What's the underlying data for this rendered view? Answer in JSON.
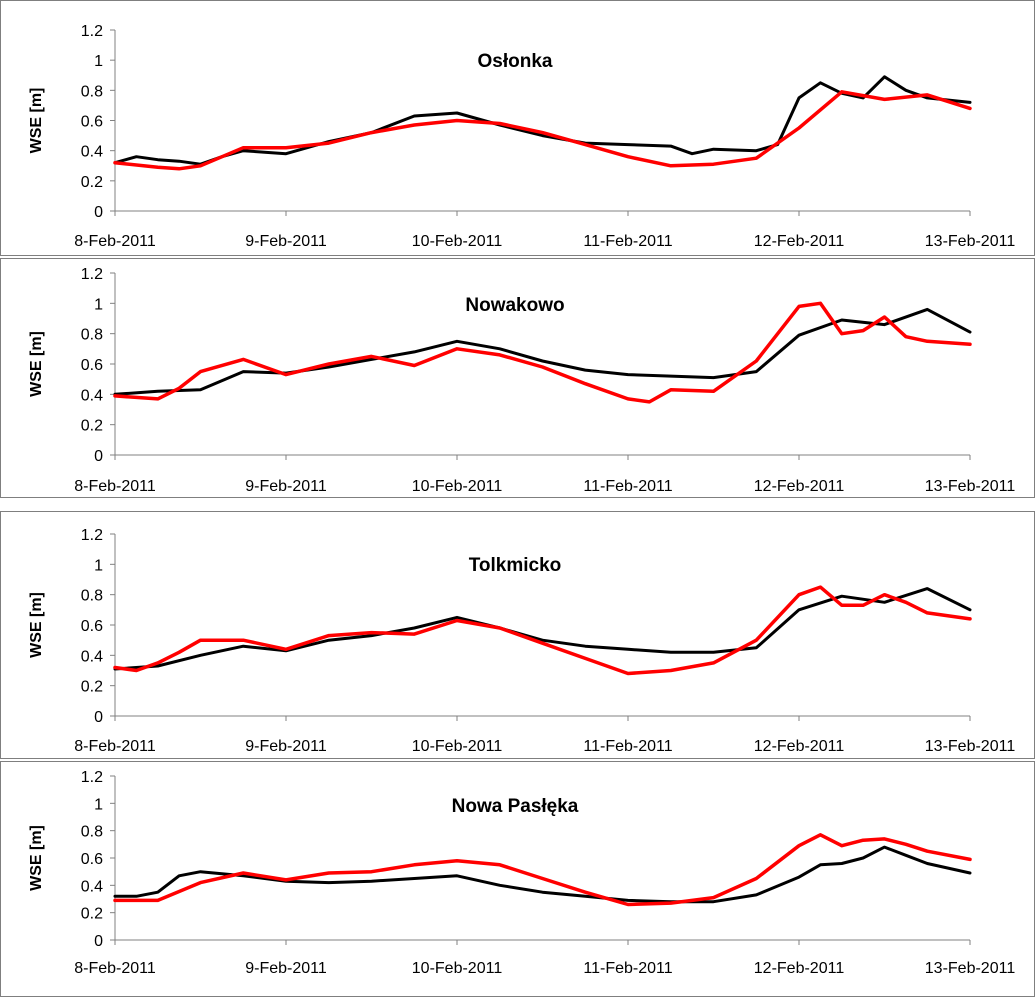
{
  "colors": {
    "observed": "#000000",
    "modelled": "#ff0000"
  },
  "chart_data": [
    {
      "type": "line",
      "title": "Osłonka",
      "ylabel": "WSE [m]",
      "xlabel": "",
      "ylim": [
        0,
        1.2
      ],
      "yticks": [
        "0",
        "0.2",
        "0.4",
        "0.6",
        "0.8",
        "1",
        "1.2"
      ],
      "xlim": [
        "8-Feb-2011",
        "13-Feb-2011"
      ],
      "xticks": [
        "8-Feb-2011",
        "9-Feb-2011",
        "10-Feb-2011",
        "11-Feb-2011",
        "12-Feb-2011",
        "13-Feb-2011"
      ],
      "grid": false,
      "series": [
        {
          "color": "#000000",
          "x": [
            "2011-02-08 00:00",
            "2011-02-08 03:00",
            "2011-02-08 06:00",
            "2011-02-08 09:00",
            "2011-02-08 12:00",
            "2011-02-08 15:00",
            "2011-02-08 18:00",
            "2011-02-09 00:00",
            "2011-02-09 06:00",
            "2011-02-09 12:00",
            "2011-02-09 18:00",
            "2011-02-10 00:00",
            "2011-02-10 06:00",
            "2011-02-10 12:00",
            "2011-02-10 18:00",
            "2011-02-11 00:00",
            "2011-02-11 06:00",
            "2011-02-11 09:00",
            "2011-02-11 12:00",
            "2011-02-11 18:00",
            "2011-02-11 21:00",
            "2011-02-12 00:00",
            "2011-02-12 03:00",
            "2011-02-12 06:00",
            "2011-02-12 09:00",
            "2011-02-12 12:00",
            "2011-02-12 15:00",
            "2011-02-12 18:00",
            "2011-02-13 00:00"
          ],
          "values": [
            0.32,
            0.36,
            0.34,
            0.33,
            0.31,
            0.36,
            0.4,
            0.38,
            0.46,
            0.52,
            0.63,
            0.65,
            0.57,
            0.5,
            0.45,
            0.44,
            0.43,
            0.38,
            0.41,
            0.4,
            0.44,
            0.75,
            0.85,
            0.78,
            0.75,
            0.89,
            0.8,
            0.75,
            0.72
          ]
        },
        {
          "color": "#ff0000",
          "x": [
            "2011-02-08 00:00",
            "2011-02-08 06:00",
            "2011-02-08 09:00",
            "2011-02-08 12:00",
            "2011-02-08 18:00",
            "2011-02-09 00:00",
            "2011-02-09 06:00",
            "2011-02-09 12:00",
            "2011-02-09 18:00",
            "2011-02-10 00:00",
            "2011-02-10 06:00",
            "2011-02-10 12:00",
            "2011-02-10 18:00",
            "2011-02-11 00:00",
            "2011-02-11 06:00",
            "2011-02-11 12:00",
            "2011-02-11 18:00",
            "2011-02-12 00:00",
            "2011-02-12 06:00",
            "2011-02-12 12:00",
            "2011-02-12 18:00",
            "2011-02-13 00:00"
          ],
          "values": [
            0.32,
            0.29,
            0.28,
            0.3,
            0.42,
            0.42,
            0.45,
            0.52,
            0.57,
            0.6,
            0.58,
            0.52,
            0.44,
            0.36,
            0.3,
            0.31,
            0.35,
            0.55,
            0.79,
            0.74,
            0.77,
            0.68
          ]
        }
      ]
    },
    {
      "type": "line",
      "title": "Nowakowo",
      "ylabel": "WSE [m]",
      "xlabel": "",
      "ylim": [
        0,
        1.2
      ],
      "yticks": [
        "0",
        "0.2",
        "0.4",
        "0.6",
        "0.8",
        "1",
        "1.2"
      ],
      "xlim": [
        "8-Feb-2011",
        "13-Feb-2011"
      ],
      "xticks": [
        "8-Feb-2011",
        "9-Feb-2011",
        "10-Feb-2011",
        "11-Feb-2011",
        "12-Feb-2011",
        "13-Feb-2011"
      ],
      "grid": false,
      "series": [
        {
          "color": "#000000",
          "x": [
            "2011-02-08 00:00",
            "2011-02-08 06:00",
            "2011-02-08 12:00",
            "2011-02-08 18:00",
            "2011-02-09 00:00",
            "2011-02-09 06:00",
            "2011-02-09 12:00",
            "2011-02-09 18:00",
            "2011-02-10 00:00",
            "2011-02-10 06:00",
            "2011-02-10 12:00",
            "2011-02-10 18:00",
            "2011-02-11 00:00",
            "2011-02-11 06:00",
            "2011-02-11 12:00",
            "2011-02-11 18:00",
            "2011-02-12 00:00",
            "2011-02-12 06:00",
            "2011-02-12 12:00",
            "2011-02-12 18:00",
            "2011-02-13 00:00"
          ],
          "values": [
            0.4,
            0.42,
            0.43,
            0.55,
            0.54,
            0.58,
            0.63,
            0.68,
            0.75,
            0.7,
            0.62,
            0.56,
            0.53,
            0.52,
            0.51,
            0.55,
            0.79,
            0.89,
            0.86,
            0.96,
            0.81
          ]
        },
        {
          "color": "#ff0000",
          "x": [
            "2011-02-08 00:00",
            "2011-02-08 06:00",
            "2011-02-08 09:00",
            "2011-02-08 12:00",
            "2011-02-08 18:00",
            "2011-02-09 00:00",
            "2011-02-09 06:00",
            "2011-02-09 12:00",
            "2011-02-09 18:00",
            "2011-02-10 00:00",
            "2011-02-10 06:00",
            "2011-02-10 12:00",
            "2011-02-10 18:00",
            "2011-02-11 00:00",
            "2011-02-11 03:00",
            "2011-02-11 06:00",
            "2011-02-11 12:00",
            "2011-02-11 18:00",
            "2011-02-12 00:00",
            "2011-02-12 03:00",
            "2011-02-12 06:00",
            "2011-02-12 09:00",
            "2011-02-12 12:00",
            "2011-02-12 15:00",
            "2011-02-12 18:00",
            "2011-02-13 00:00"
          ],
          "values": [
            0.39,
            0.37,
            0.44,
            0.55,
            0.63,
            0.53,
            0.6,
            0.65,
            0.59,
            0.7,
            0.66,
            0.58,
            0.47,
            0.37,
            0.35,
            0.43,
            0.42,
            0.62,
            0.98,
            1.0,
            0.8,
            0.82,
            0.91,
            0.78,
            0.75,
            0.73
          ]
        }
      ]
    },
    {
      "type": "line",
      "title": "Tolkmicko",
      "ylabel": "WSE [m]",
      "xlabel": "",
      "ylim": [
        0,
        1.2
      ],
      "yticks": [
        "0",
        "0.2",
        "0.4",
        "0.6",
        "0.8",
        "1",
        "1.2"
      ],
      "xlim": [
        "8-Feb-2011",
        "13-Feb-2011"
      ],
      "xticks": [
        "8-Feb-2011",
        "9-Feb-2011",
        "10-Feb-2011",
        "11-Feb-2011",
        "12-Feb-2011",
        "13-Feb-2011"
      ],
      "grid": false,
      "series": [
        {
          "color": "#000000",
          "x": [
            "2011-02-08 00:00",
            "2011-02-08 06:00",
            "2011-02-08 12:00",
            "2011-02-08 18:00",
            "2011-02-09 00:00",
            "2011-02-09 06:00",
            "2011-02-09 12:00",
            "2011-02-09 18:00",
            "2011-02-10 00:00",
            "2011-02-10 06:00",
            "2011-02-10 12:00",
            "2011-02-10 18:00",
            "2011-02-11 00:00",
            "2011-02-11 06:00",
            "2011-02-11 12:00",
            "2011-02-11 18:00",
            "2011-02-12 00:00",
            "2011-02-12 06:00",
            "2011-02-12 12:00",
            "2011-02-12 18:00",
            "2011-02-13 00:00"
          ],
          "values": [
            0.31,
            0.33,
            0.4,
            0.46,
            0.43,
            0.5,
            0.53,
            0.58,
            0.65,
            0.58,
            0.5,
            0.46,
            0.44,
            0.42,
            0.42,
            0.45,
            0.7,
            0.79,
            0.75,
            0.84,
            0.7
          ]
        },
        {
          "color": "#ff0000",
          "x": [
            "2011-02-08 00:00",
            "2011-02-08 03:00",
            "2011-02-08 06:00",
            "2011-02-08 09:00",
            "2011-02-08 12:00",
            "2011-02-08 18:00",
            "2011-02-09 00:00",
            "2011-02-09 06:00",
            "2011-02-09 12:00",
            "2011-02-09 18:00",
            "2011-02-10 00:00",
            "2011-02-10 06:00",
            "2011-02-10 12:00",
            "2011-02-10 18:00",
            "2011-02-11 00:00",
            "2011-02-11 06:00",
            "2011-02-11 12:00",
            "2011-02-11 18:00",
            "2011-02-12 00:00",
            "2011-02-12 03:00",
            "2011-02-12 06:00",
            "2011-02-12 09:00",
            "2011-02-12 12:00",
            "2011-02-12 15:00",
            "2011-02-12 18:00",
            "2011-02-13 00:00"
          ],
          "values": [
            0.32,
            0.3,
            0.35,
            0.42,
            0.5,
            0.5,
            0.44,
            0.53,
            0.55,
            0.54,
            0.63,
            0.58,
            0.48,
            0.38,
            0.28,
            0.3,
            0.35,
            0.5,
            0.8,
            0.85,
            0.73,
            0.73,
            0.8,
            0.75,
            0.68,
            0.64
          ]
        }
      ]
    },
    {
      "type": "line",
      "title": "Nowa Pasłęka",
      "ylabel": "WSE [m]",
      "xlabel": "",
      "ylim": [
        0,
        1.2
      ],
      "yticks": [
        "0",
        "0.2",
        "0.4",
        "0.6",
        "0.8",
        "1",
        "1.2"
      ],
      "xlim": [
        "8-Feb-2011",
        "13-Feb-2011"
      ],
      "xticks": [
        "8-Feb-2011",
        "9-Feb-2011",
        "10-Feb-2011",
        "11-Feb-2011",
        "12-Feb-2011",
        "13-Feb-2011"
      ],
      "grid": false,
      "series": [
        {
          "color": "#000000",
          "x": [
            "2011-02-08 00:00",
            "2011-02-08 03:00",
            "2011-02-08 06:00",
            "2011-02-08 09:00",
            "2011-02-08 12:00",
            "2011-02-08 18:00",
            "2011-02-09 00:00",
            "2011-02-09 06:00",
            "2011-02-09 12:00",
            "2011-02-09 18:00",
            "2011-02-10 00:00",
            "2011-02-10 06:00",
            "2011-02-10 12:00",
            "2011-02-10 18:00",
            "2011-02-11 00:00",
            "2011-02-11 06:00",
            "2011-02-11 12:00",
            "2011-02-11 18:00",
            "2011-02-12 00:00",
            "2011-02-12 03:00",
            "2011-02-12 06:00",
            "2011-02-12 09:00",
            "2011-02-12 12:00",
            "2011-02-12 15:00",
            "2011-02-12 18:00",
            "2011-02-13 00:00"
          ],
          "values": [
            0.32,
            0.32,
            0.35,
            0.47,
            0.5,
            0.47,
            0.43,
            0.42,
            0.43,
            0.45,
            0.47,
            0.4,
            0.35,
            0.32,
            0.29,
            0.28,
            0.28,
            0.33,
            0.46,
            0.55,
            0.56,
            0.6,
            0.68,
            0.62,
            0.56,
            0.49
          ]
        },
        {
          "color": "#ff0000",
          "x": [
            "2011-02-08 00:00",
            "2011-02-08 06:00",
            "2011-02-08 12:00",
            "2011-02-08 18:00",
            "2011-02-09 00:00",
            "2011-02-09 06:00",
            "2011-02-09 12:00",
            "2011-02-09 18:00",
            "2011-02-10 00:00",
            "2011-02-10 06:00",
            "2011-02-10 12:00",
            "2011-02-10 18:00",
            "2011-02-11 00:00",
            "2011-02-11 06:00",
            "2011-02-11 12:00",
            "2011-02-11 18:00",
            "2011-02-12 00:00",
            "2011-02-12 03:00",
            "2011-02-12 06:00",
            "2011-02-12 09:00",
            "2011-02-12 12:00",
            "2011-02-12 15:00",
            "2011-02-12 18:00",
            "2011-02-13 00:00"
          ],
          "values": [
            0.29,
            0.29,
            0.42,
            0.49,
            0.44,
            0.49,
            0.5,
            0.55,
            0.58,
            0.55,
            0.45,
            0.35,
            0.26,
            0.27,
            0.31,
            0.45,
            0.69,
            0.77,
            0.69,
            0.73,
            0.74,
            0.7,
            0.65,
            0.59
          ]
        }
      ]
    }
  ]
}
